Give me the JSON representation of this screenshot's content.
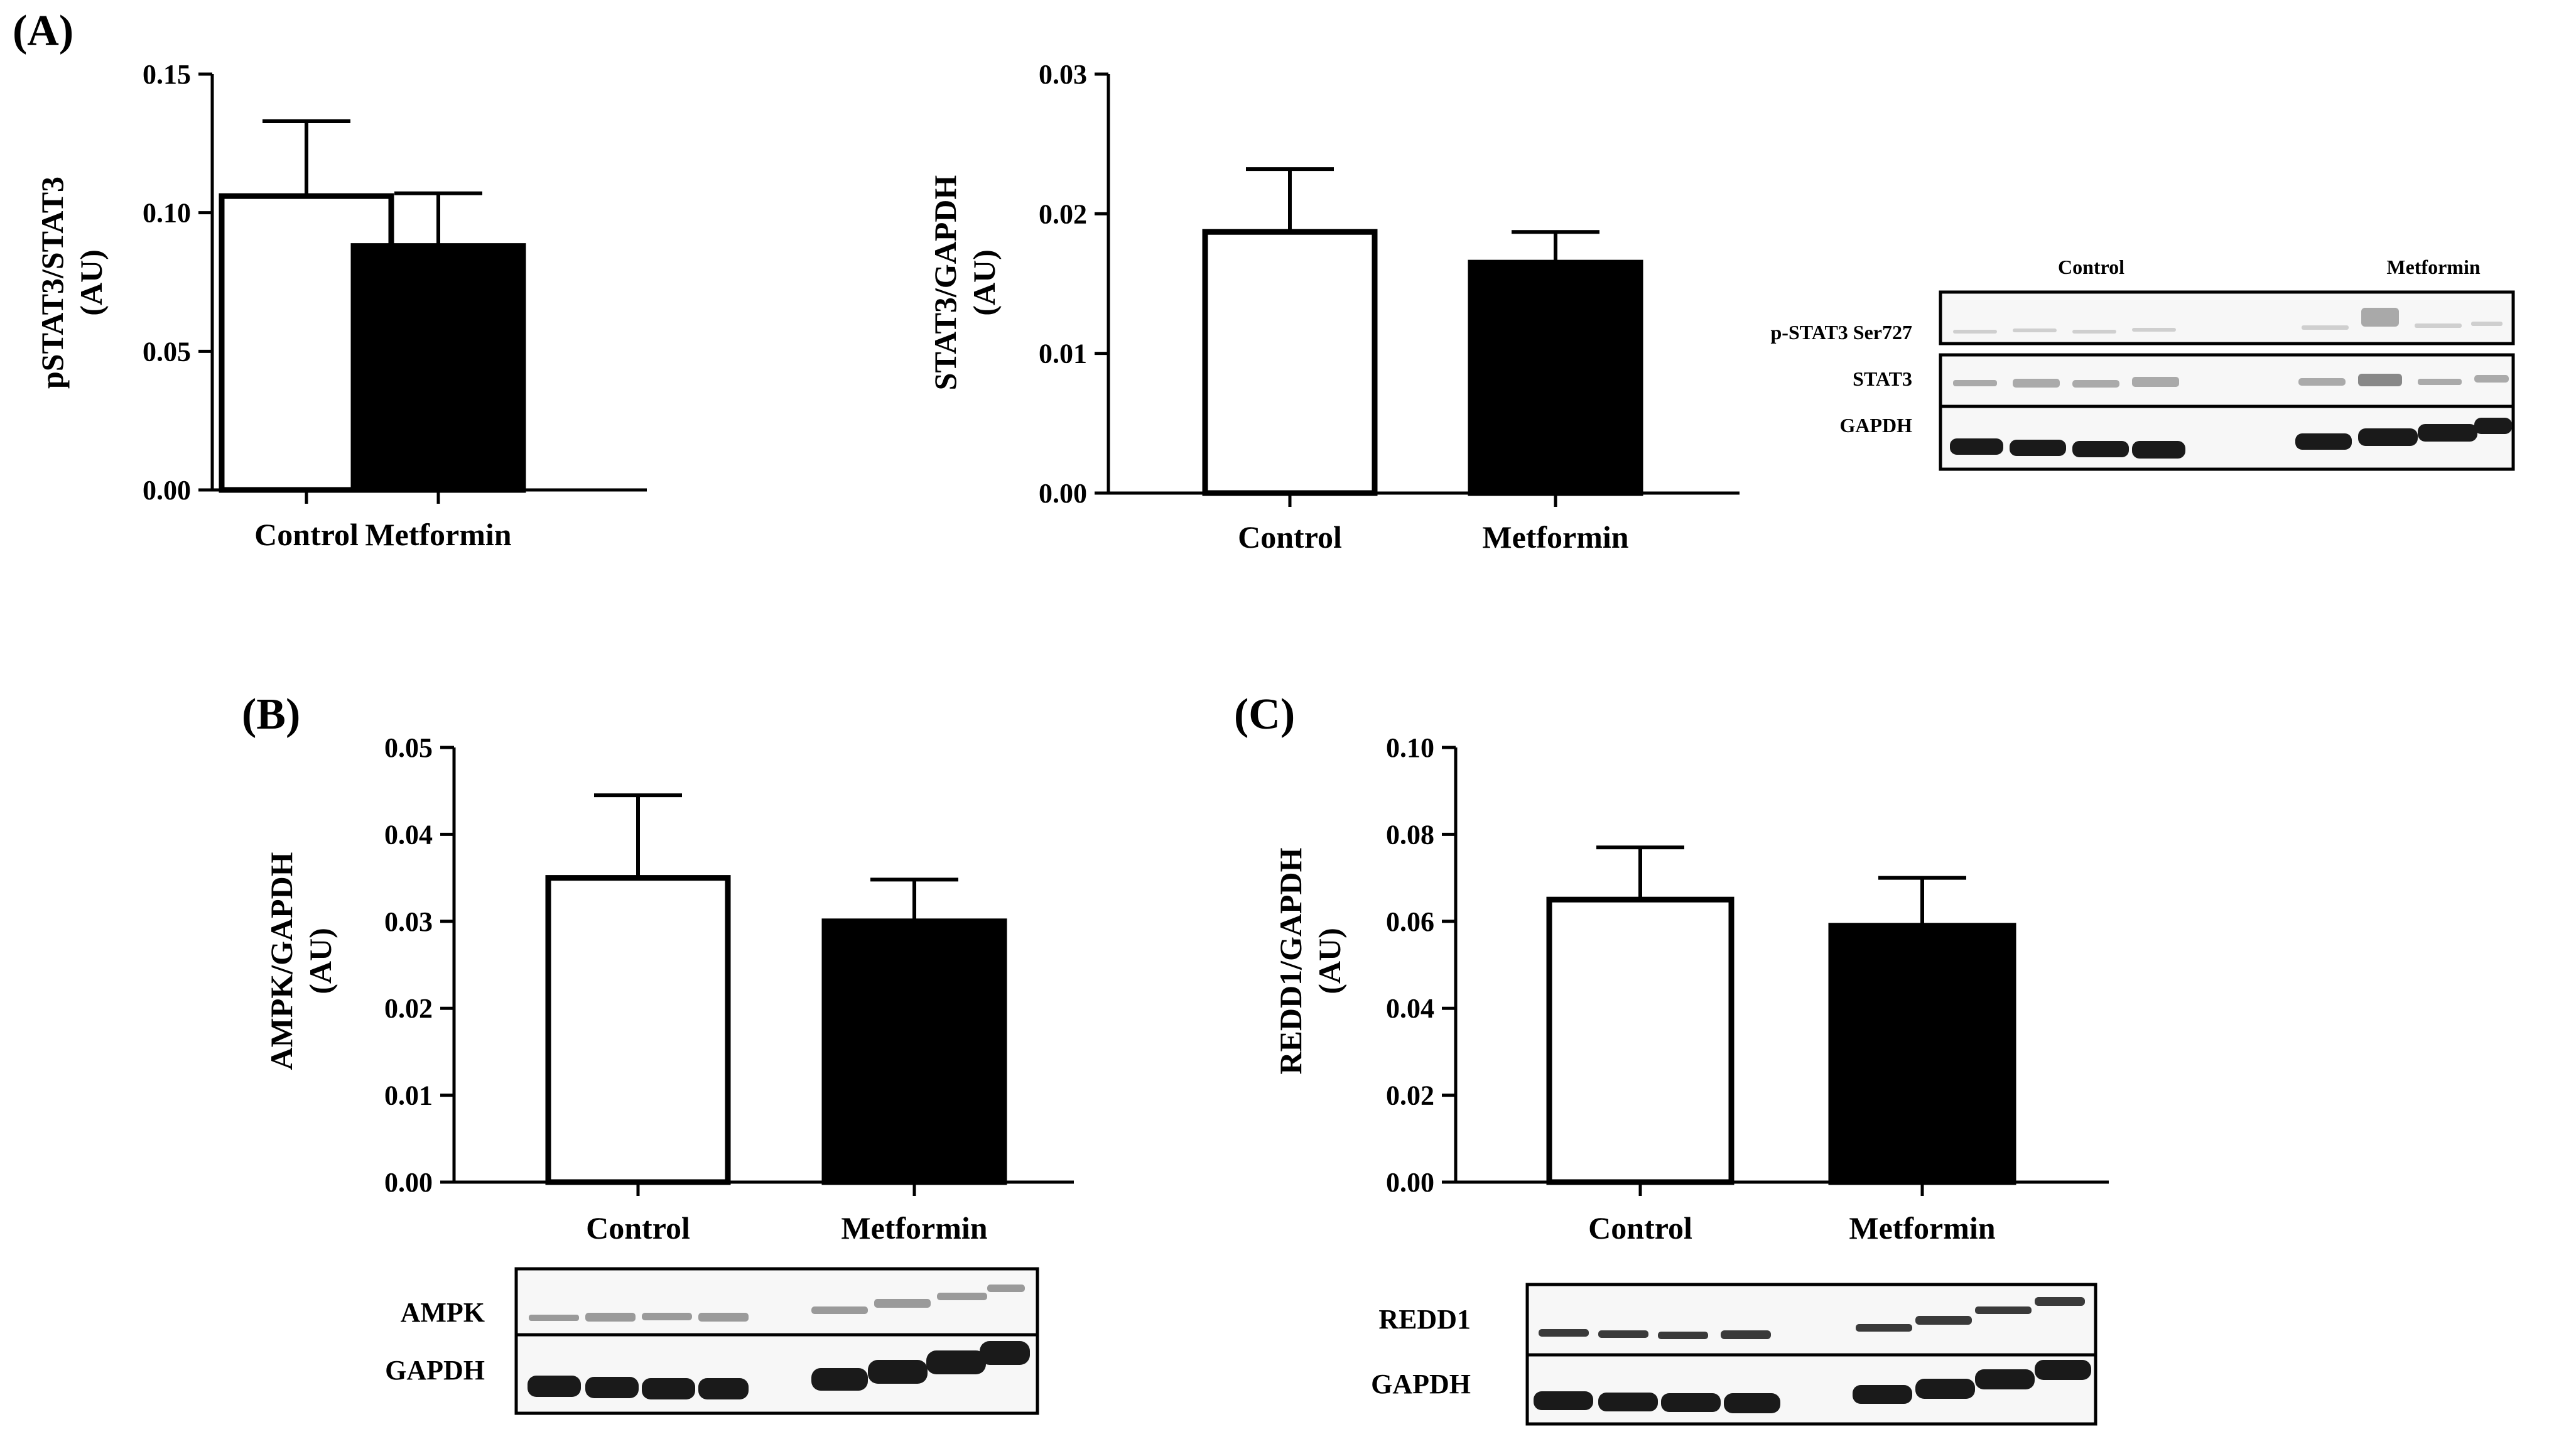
{
  "panels": {
    "A": "(A)",
    "B": "(B)",
    "C": "(C)"
  },
  "chart_data": [
    {
      "id": "pstat3",
      "type": "bar",
      "title": "",
      "xlabel": "",
      "ylabel": [
        "pSTAT3/STAT3",
        "(AU)"
      ],
      "categories": [
        "Control",
        "Metformin"
      ],
      "values": [
        0.106,
        0.088
      ],
      "errors": [
        0.027,
        0.019
      ],
      "fills": [
        "#ffffff",
        "#000000"
      ],
      "ylim": [
        0,
        0.15
      ],
      "ticks": [
        "0.00",
        "0.05",
        "0.10",
        "0.15"
      ],
      "tick_values": [
        0,
        0.05,
        0.1,
        0.15
      ]
    },
    {
      "id": "stat3",
      "type": "bar",
      "title": "",
      "xlabel": "",
      "ylabel": [
        "STAT3/GAPDH",
        "(AU)"
      ],
      "categories": [
        "Control",
        "Metformin"
      ],
      "values": [
        0.0187,
        0.0165
      ],
      "errors": [
        0.0045,
        0.0022
      ],
      "fills": [
        "#ffffff",
        "#000000"
      ],
      "ylim": [
        0,
        0.03
      ],
      "ticks": [
        "0.00",
        "0.01",
        "0.02",
        "0.03"
      ],
      "tick_values": [
        0,
        0.01,
        0.02,
        0.03
      ]
    },
    {
      "id": "ampk",
      "type": "bar",
      "title": "",
      "xlabel": "",
      "ylabel": [
        "AMPK/GAPDH",
        "(AU)"
      ],
      "categories": [
        "Control",
        "Metformin"
      ],
      "values": [
        0.035,
        0.03
      ],
      "errors": [
        0.0095,
        0.0048
      ],
      "fills": [
        "#ffffff",
        "#000000"
      ],
      "ylim": [
        0,
        0.05
      ],
      "ticks": [
        "0.00",
        "0.01",
        "0.02",
        "0.03",
        "0.04",
        "0.05"
      ],
      "tick_values": [
        0,
        0.01,
        0.02,
        0.03,
        0.04,
        0.05
      ]
    },
    {
      "id": "redd1",
      "type": "bar",
      "title": "",
      "xlabel": "",
      "ylabel": [
        "REDD1/GAPDH",
        "(AU)"
      ],
      "categories": [
        "Control",
        "Metformin"
      ],
      "values": [
        0.065,
        0.059
      ],
      "errors": [
        0.012,
        0.011
      ],
      "fills": [
        "#ffffff",
        "#000000"
      ],
      "ylim": [
        0,
        0.1
      ],
      "ticks": [
        "0.00",
        "0.02",
        "0.04",
        "0.06",
        "0.08",
        "0.10"
      ],
      "tick_values": [
        0,
        0.02,
        0.04,
        0.06,
        0.08,
        0.1
      ]
    }
  ],
  "blots": {
    "A": {
      "header_control": "Control",
      "header_metformin": "Metformin",
      "rows": [
        "p-STAT3 Ser727",
        "STAT3",
        "GAPDH"
      ]
    },
    "B": {
      "rows": [
        "AMPK",
        "GAPDH"
      ]
    },
    "C": {
      "rows": [
        "REDD1",
        "GAPDH"
      ]
    }
  }
}
